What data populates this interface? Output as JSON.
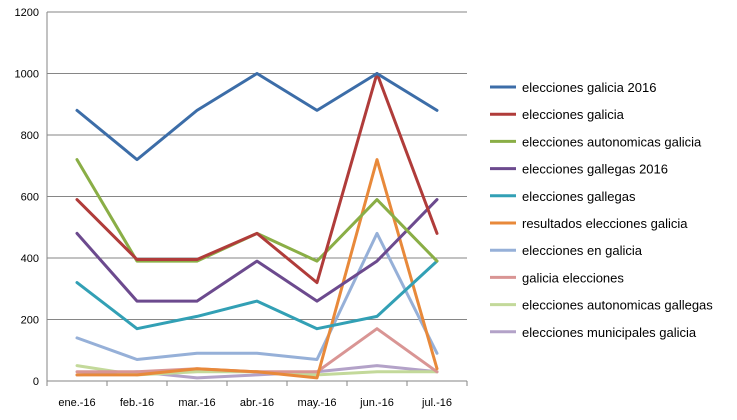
{
  "chart_data": {
    "type": "line",
    "title": "",
    "xlabel": "",
    "ylabel": "",
    "ylim": [
      0,
      1200
    ],
    "yticks": [
      0,
      200,
      400,
      600,
      800,
      1000,
      1200
    ],
    "grid": "horizontal",
    "legend_position": "right",
    "categories": [
      "ene.-16",
      "feb.-16",
      "mar.-16",
      "abr.-16",
      "may.-16",
      "jun.-16",
      "jul.-16"
    ],
    "series": [
      {
        "name": "elecciones galicia 2016",
        "color": "#3C6DA8",
        "values": [
          880,
          720,
          880,
          1000,
          880,
          1000,
          880
        ]
      },
      {
        "name": "elecciones galicia",
        "color": "#B03C3A",
        "values": [
          590,
          395,
          395,
          480,
          320,
          1000,
          480
        ]
      },
      {
        "name": "elecciones autonomicas galicia",
        "color": "#8AAE46",
        "values": [
          720,
          390,
          390,
          480,
          390,
          590,
          390
        ]
      },
      {
        "name": "elecciones gallegas 2016",
        "color": "#6C4A8E",
        "values": [
          480,
          260,
          260,
          390,
          260,
          390,
          590
        ]
      },
      {
        "name": "elecciones gallegas",
        "color": "#32A0B5",
        "values": [
          320,
          170,
          210,
          260,
          170,
          210,
          390
        ]
      },
      {
        "name": "resultados elecciones galicia",
        "color": "#E8893A",
        "values": [
          20,
          20,
          40,
          30,
          10,
          720,
          40
        ]
      },
      {
        "name": "elecciones en galicia",
        "color": "#96B0D8",
        "values": [
          140,
          70,
          90,
          90,
          70,
          480,
          90
        ]
      },
      {
        "name": "galicia elecciones",
        "color": "#D99594",
        "values": [
          30,
          30,
          40,
          30,
          30,
          170,
          30
        ]
      },
      {
        "name": "elecciones autonomicas gallegas",
        "color": "#C3D99A",
        "values": [
          50,
          20,
          30,
          30,
          20,
          30,
          30
        ]
      },
      {
        "name": "elecciones municipales galicia",
        "color": "#B3A2C8",
        "values": [
          20,
          30,
          10,
          20,
          30,
          50,
          30
        ]
      }
    ]
  }
}
